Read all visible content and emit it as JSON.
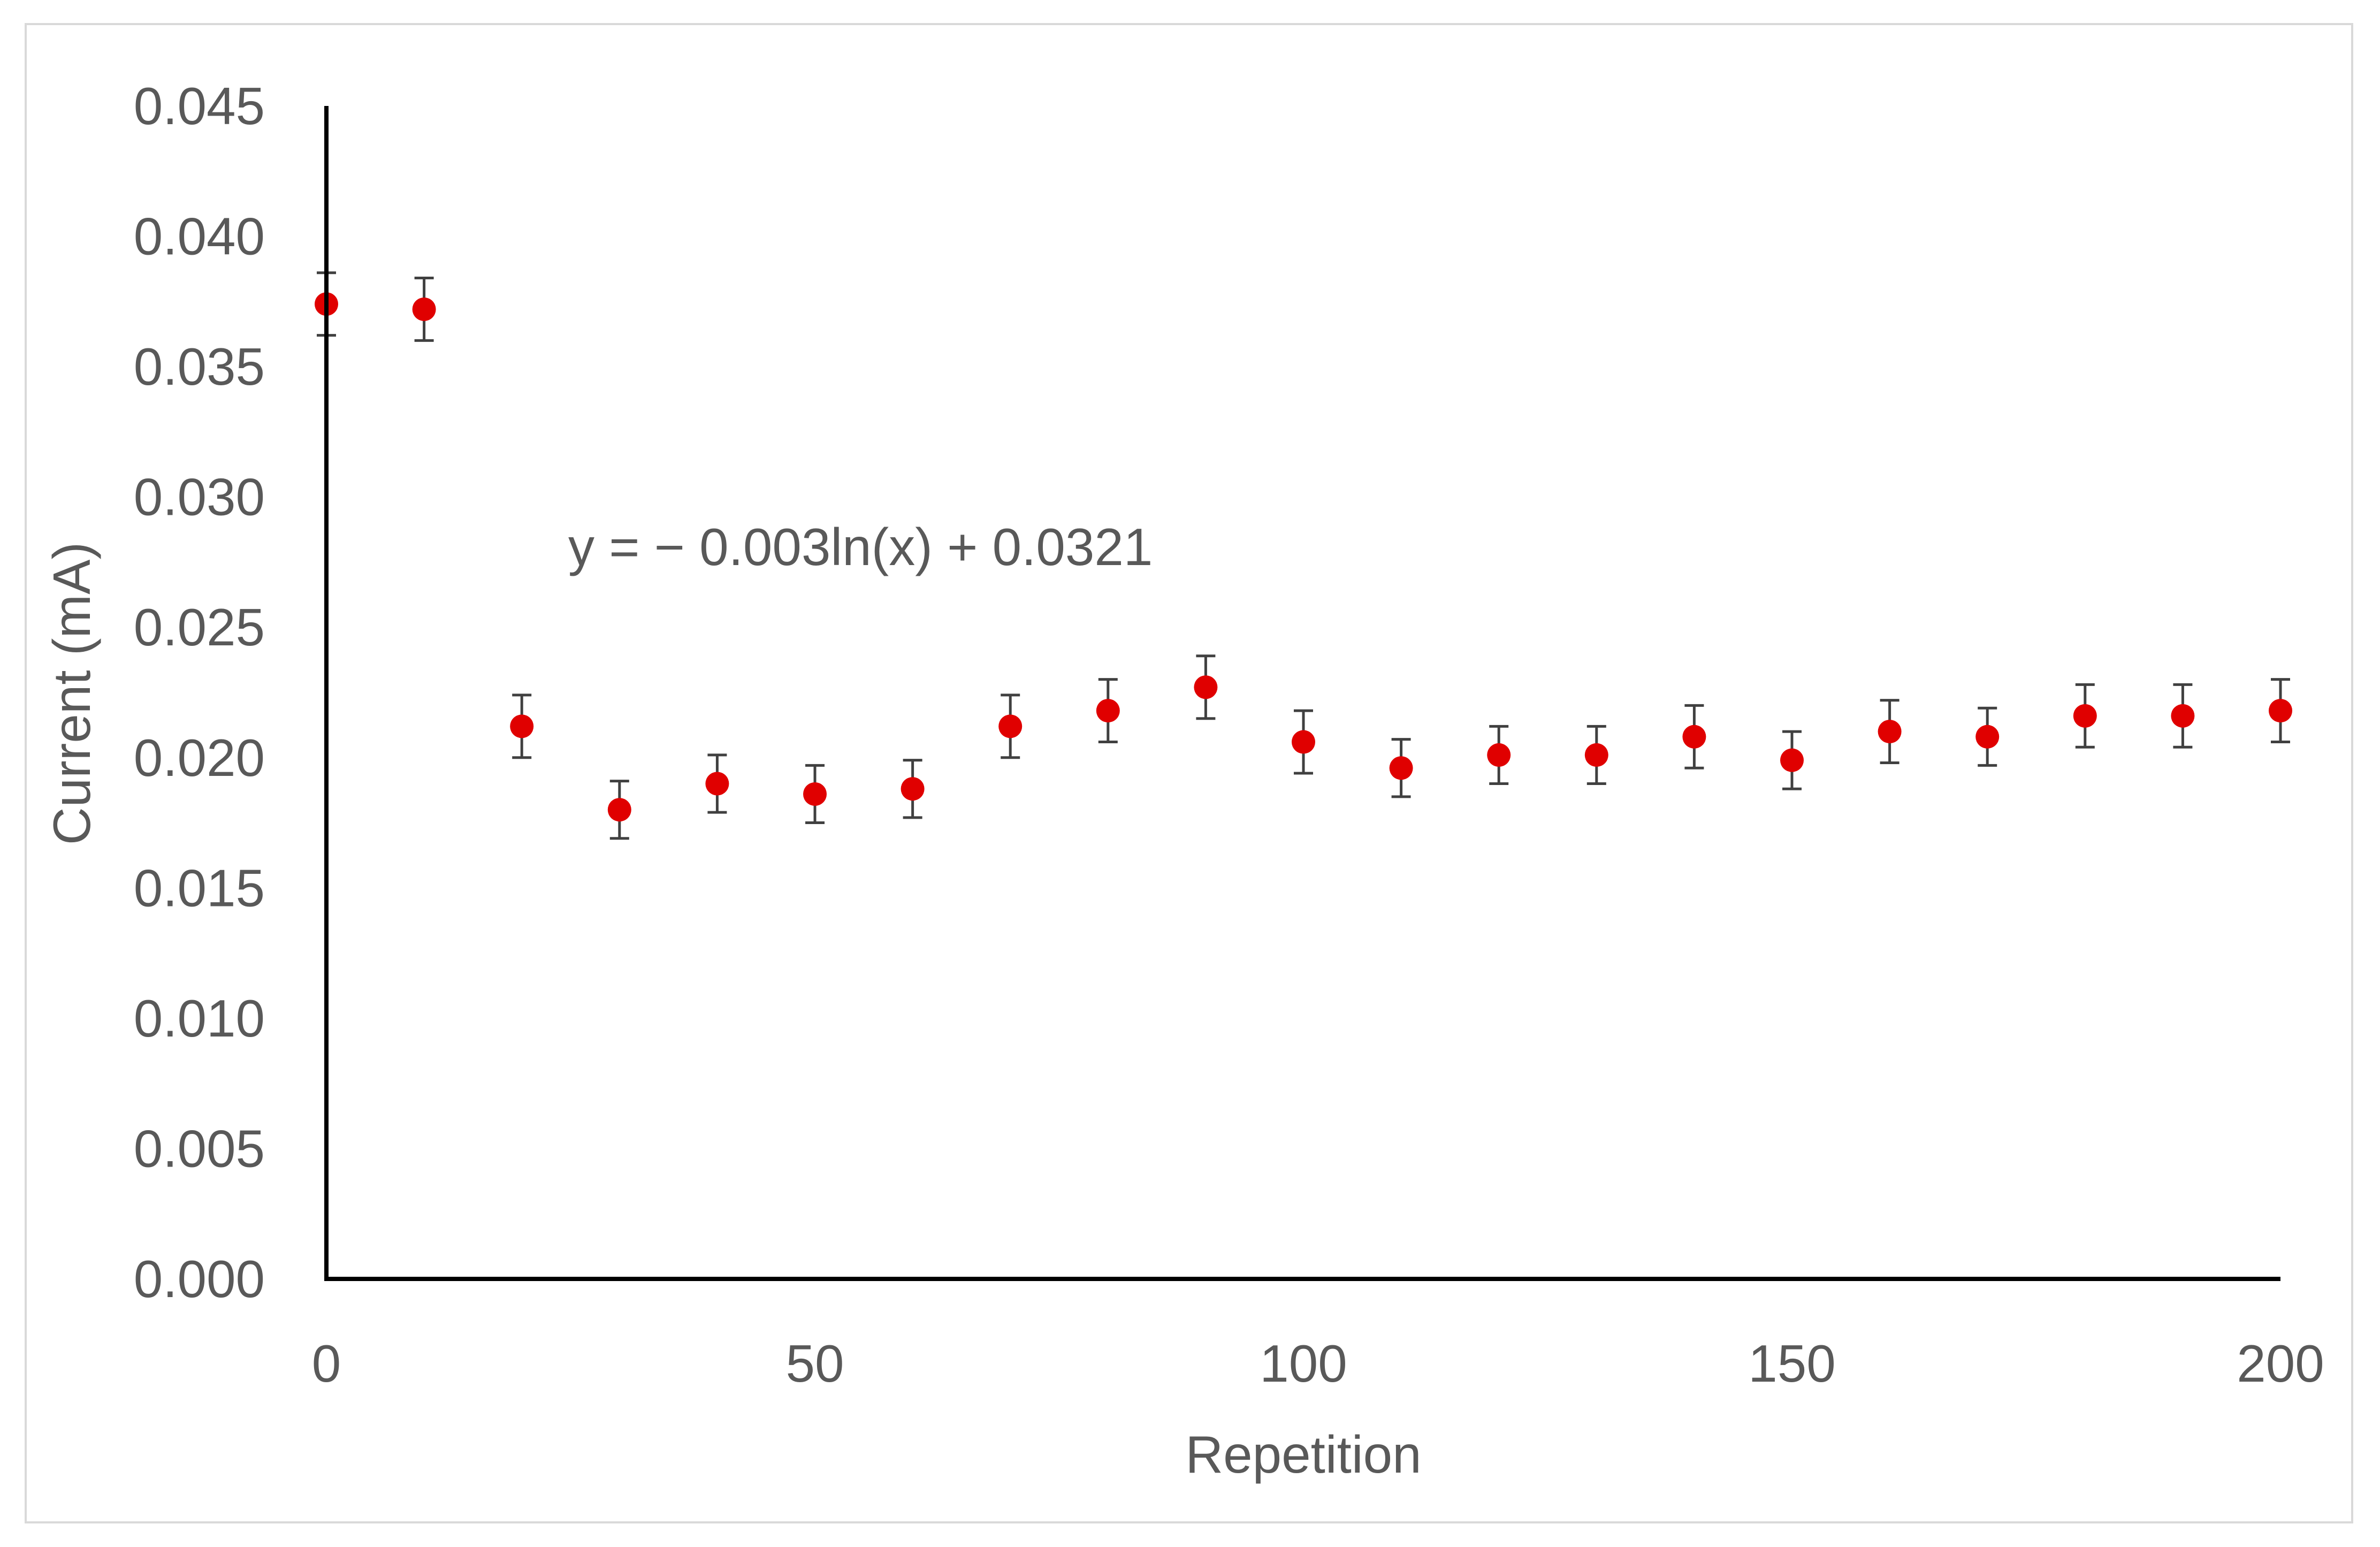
{
  "chart_data": {
    "type": "scatter",
    "xlabel": "Repetition",
    "ylabel": "Current (mA)",
    "xlim": [
      0,
      200
    ],
    "ylim": [
      0,
      0.045
    ],
    "x_ticks": [
      "0",
      "50",
      "100",
      "150",
      "200"
    ],
    "y_ticks": [
      "0.000",
      "0.005",
      "0.010",
      "0.015",
      "0.020",
      "0.025",
      "0.030",
      "0.035",
      "0.040",
      "0.045"
    ],
    "grid": false,
    "legend": "none",
    "marker_color": "#e00000",
    "errorbar_color": "#404040",
    "annotation": "y = − 0.003ln(x) + 0.0321",
    "series": [
      {
        "x": [
          0,
          10,
          20,
          30,
          40,
          50,
          60,
          70,
          80,
          90,
          100,
          110,
          120,
          130,
          140,
          150,
          160,
          170,
          180,
          190,
          200
        ],
        "y": [
          0.0374,
          0.0372,
          0.0212,
          0.018,
          0.019,
          0.0186,
          0.0188,
          0.0212,
          0.0218,
          0.0227,
          0.0206,
          0.0196,
          0.0201,
          0.0201,
          0.0208,
          0.0199,
          0.021,
          0.0208,
          0.0216,
          0.0216,
          0.0218
        ],
        "error": [
          0.0012,
          0.0012,
          0.0012,
          0.0011,
          0.0011,
          0.0011,
          0.0011,
          0.0012,
          0.0012,
          0.0012,
          0.0012,
          0.0011,
          0.0011,
          0.0011,
          0.0012,
          0.0011,
          0.0012,
          0.0011,
          0.0012,
          0.0012,
          0.0012
        ]
      }
    ]
  }
}
